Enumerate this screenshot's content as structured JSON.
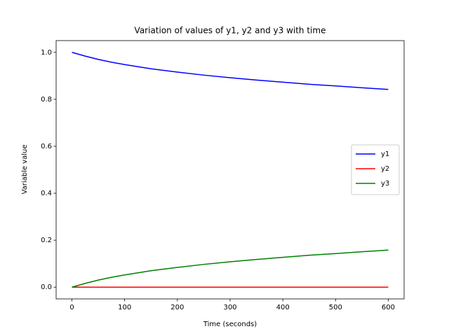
{
  "chart_data": {
    "type": "line",
    "title": "Variation of values of y1, y2 and y3 with time",
    "x_label": "Time (seconds)",
    "y_label": "Variable value",
    "x": [
      0,
      25,
      50,
      75,
      100,
      150,
      200,
      250,
      300,
      350,
      400,
      450,
      500,
      550,
      600
    ],
    "series": [
      {
        "name": "y1",
        "color": "#0000ff",
        "values": [
          1.0,
          0.984,
          0.97,
          0.958,
          0.948,
          0.93,
          0.916,
          0.903,
          0.892,
          0.882,
          0.873,
          0.864,
          0.857,
          0.849,
          0.842
        ]
      },
      {
        "name": "y2",
        "color": "#ff0000",
        "values": [
          0,
          0,
          0,
          0,
          0,
          0,
          0,
          0,
          0,
          0,
          0,
          0,
          0,
          0,
          0
        ]
      },
      {
        "name": "y3",
        "color": "#008000",
        "values": [
          0,
          0.016,
          0.03,
          0.042,
          0.052,
          0.07,
          0.084,
          0.097,
          0.108,
          0.118,
          0.127,
          0.136,
          0.143,
          0.151,
          0.158
        ]
      }
    ],
    "xlim": [
      -30,
      630
    ],
    "ylim": [
      -0.05,
      1.05
    ],
    "xticks": [
      0,
      100,
      200,
      300,
      400,
      500,
      600
    ],
    "yticks": [
      {
        "value": 0,
        "label": "0.0"
      },
      {
        "value": 0.2,
        "label": "0.2"
      },
      {
        "value": 0.4,
        "label": "0.4"
      },
      {
        "value": 0.6,
        "label": "0.6"
      },
      {
        "value": 0.8,
        "label": "0.8"
      },
      {
        "value": 1.0,
        "label": "1.0"
      }
    ],
    "legend": "right"
  }
}
